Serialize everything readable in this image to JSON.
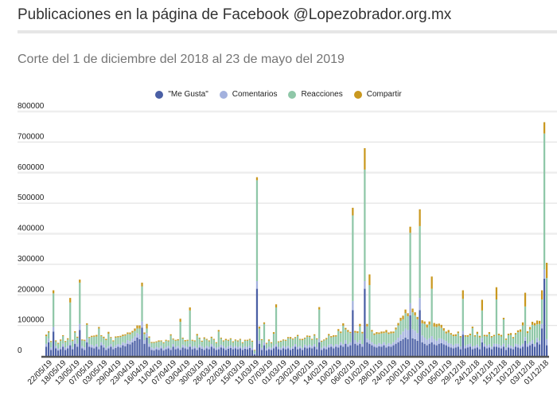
{
  "chart_data": {
    "type": "bar",
    "stacked": true,
    "title": "Publicaciones en la página de Facebook @Lopezobrador.org.mx",
    "subtitle": "Corte del 1 de diciembre del 2018 al 23 de mayo del 2019",
    "xlabel": "",
    "ylabel": "",
    "ylim": [
      0,
      800000
    ],
    "yticks": [
      "0",
      "100000",
      "200000",
      "300000",
      "400000",
      "500000",
      "600000",
      "700000",
      "800000"
    ],
    "xtick_labels": [
      "22/05/19",
      "18/05/19",
      "13/05/19",
      "07/05/19",
      "03/05/19",
      "29/04/19",
      "23/04/19",
      "16/04/19",
      "11/04/19",
      "07/04/19",
      "03/04/19",
      "30/03/19",
      "26/03/19",
      "22/03/19",
      "15/03/19",
      "11/03/19",
      "07/03/19",
      "01/03/19",
      "23/02/19",
      "19/02/19",
      "14/02/19",
      "10/02/19",
      "06/02/19",
      "01/02/19",
      "28/01/19",
      "24/01/19",
      "20/01/19",
      "15/01/19",
      "10/01/19",
      "05/01/19",
      "29/12/18",
      "24/12/18",
      "19/12/18",
      "15/12/18",
      "10/12/18",
      "03/12/18",
      "01/12/18"
    ],
    "legend_position": "top-center",
    "grid": true,
    "series_unit_multiplier": 1000,
    "series": [
      {
        "name": "\"Me Gusta\"",
        "color": "#4a5fa5",
        "values": [
          30,
          45,
          20,
          80,
          25,
          18,
          22,
          30,
          20,
          25,
          35,
          22,
          40,
          30,
          85,
          25,
          20,
          45,
          30,
          28,
          25,
          30,
          22,
          35,
          28,
          20,
          25,
          30,
          22,
          26,
          30,
          28,
          35,
          32,
          40,
          38,
          45,
          50,
          60,
          55,
          93,
          40,
          60,
          30,
          20,
          18,
          22,
          20,
          25,
          18,
          22,
          25,
          20,
          30,
          22,
          25,
          20,
          28,
          25,
          22,
          30,
          22,
          25,
          20,
          28,
          24,
          20,
          25,
          22,
          30,
          25,
          20,
          22,
          28,
          25,
          20,
          24,
          26,
          22,
          25,
          22,
          25,
          20,
          24,
          22,
          26,
          20,
          5,
          220,
          40,
          20,
          35,
          18,
          22,
          20,
          25,
          30,
          22,
          20,
          25,
          22,
          25,
          20,
          24,
          30,
          22,
          25,
          20,
          28,
          25,
          28,
          25,
          30,
          22,
          45,
          20,
          25,
          22,
          28,
          30,
          25,
          30,
          28,
          35,
          30,
          40,
          30,
          35,
          150,
          40,
          35,
          40,
          30,
          220,
          45,
          40,
          35,
          30,
          28,
          32,
          30,
          35,
          28,
          32,
          30,
          35,
          40,
          45,
          50,
          55,
          60,
          55,
          133,
          58,
          55,
          50,
          150,
          45,
          40,
          35,
          40,
          45,
          38,
          35,
          40,
          42,
          38,
          35,
          30,
          28,
          25,
          28,
          30,
          22,
          70,
          25,
          28,
          30,
          22,
          25,
          28,
          22,
          45,
          30,
          25,
          28,
          22,
          30,
          30,
          28,
          25,
          30,
          20,
          28,
          25,
          22,
          30,
          28,
          25,
          30,
          50,
          30,
          35,
          40,
          30,
          45,
          38,
          90,
          253,
          35
        ]
      },
      {
        "name": "Comentarios",
        "color": "#a3b1de",
        "values": [
          10,
          12,
          8,
          15,
          8,
          7,
          8,
          10,
          8,
          9,
          10,
          8,
          12,
          10,
          20,
          8,
          8,
          12,
          9,
          9,
          8,
          9,
          8,
          10,
          9,
          7,
          8,
          9,
          8,
          9,
          9,
          9,
          10,
          10,
          12,
          11,
          12,
          14,
          15,
          15,
          20,
          12,
          15,
          10,
          8,
          7,
          8,
          7,
          8,
          7,
          8,
          8,
          7,
          9,
          8,
          8,
          7,
          9,
          8,
          8,
          9,
          8,
          8,
          7,
          9,
          8,
          7,
          8,
          8,
          9,
          8,
          7,
          8,
          9,
          8,
          7,
          8,
          9,
          8,
          8,
          8,
          8,
          7,
          8,
          8,
          9,
          7,
          3,
          25,
          10,
          7,
          10,
          7,
          8,
          7,
          8,
          9,
          8,
          7,
          8,
          8,
          8,
          7,
          8,
          9,
          8,
          8,
          7,
          9,
          8,
          9,
          8,
          9,
          8,
          12,
          7,
          8,
          8,
          9,
          9,
          8,
          9,
          9,
          10,
          9,
          12,
          9,
          10,
          30,
          12,
          10,
          12,
          9,
          25,
          12,
          12,
          10,
          9,
          9,
          10,
          9,
          10,
          9,
          10,
          9,
          10,
          12,
          15,
          20,
          25,
          30,
          30,
          40,
          30,
          28,
          25,
          40,
          22,
          20,
          18,
          18,
          20,
          18,
          15,
          18,
          15,
          15,
          14,
          12,
          12,
          10,
          12,
          10,
          9,
          12,
          9,
          10,
          10,
          9,
          9,
          10,
          9,
          14,
          10,
          9,
          10,
          9,
          10,
          10,
          10,
          9,
          10,
          8,
          10,
          9,
          8,
          10,
          10,
          9,
          10,
          12,
          10,
          12,
          12,
          10,
          14,
          12,
          15,
          30,
          20
        ]
      },
      {
        "name": "Reacciones",
        "color": "#8fc7a8",
        "values": [
          25,
          20,
          18,
          110,
          15,
          15,
          20,
          25,
          18,
          20,
          130,
          20,
          25,
          20,
          135,
          18,
          22,
          45,
          20,
          25,
          30,
          25,
          60,
          20,
          22,
          25,
          40,
          20,
          18,
          25,
          22,
          25,
          20,
          25,
          20,
          22,
          20,
          18,
          15,
          20,
          115,
          20,
          15,
          20,
          15,
          18,
          15,
          20,
          15,
          17,
          20,
          15,
          40,
          15,
          20,
          18,
          85,
          20,
          15,
          20,
          110,
          20,
          15,
          40,
          20,
          15,
          30,
          20,
          18,
          20,
          20,
          15,
          50,
          20,
          15,
          25,
          18,
          20,
          15,
          18,
          18,
          20,
          15,
          18,
          20,
          18,
          20,
          10,
          330,
          40,
          25,
          60,
          15,
          20,
          15,
          40,
          120,
          15,
          20,
          18,
          20,
          25,
          30,
          22,
          20,
          35,
          20,
          25,
          20,
          30,
          25,
          20,
          28,
          25,
          95,
          20,
          18,
          25,
          30,
          22,
          30,
          25,
          45,
          30,
          60,
          35,
          40,
          30,
          280,
          25,
          30,
          45,
          35,
          365,
          40,
          180,
          35,
          30,
          35,
          30,
          35,
          30,
          40,
          30,
          35,
          30,
          35,
          40,
          45,
          40,
          50,
          45,
          230,
          55,
          50,
          45,
          235,
          40,
          45,
          40,
          45,
          155,
          40,
          45,
          40,
          35,
          30,
          25,
          35,
          30,
          30,
          25,
          35,
          30,
          105,
          30,
          25,
          28,
          60,
          30,
          35,
          30,
          90,
          25,
          30,
          35,
          30,
          25,
          145,
          30,
          30,
          80,
          25,
          30,
          35,
          28,
          30,
          40,
          45,
          60,
          100,
          35,
          40,
          50,
          60,
          45,
          55,
          80,
          445,
          200
        ]
      },
      {
        "name": "Compartir",
        "color": "#c9981f",
        "values": [
          5,
          4,
          3,
          10,
          3,
          3,
          4,
          3,
          3,
          4,
          15,
          3,
          4,
          3,
          10,
          3,
          3,
          5,
          3,
          4,
          4,
          5,
          5,
          3,
          4,
          4,
          6,
          3,
          3,
          4,
          4,
          4,
          5,
          4,
          5,
          6,
          5,
          8,
          10,
          10,
          12,
          5,
          15,
          4,
          3,
          3,
          3,
          4,
          3,
          3,
          3,
          3,
          4,
          3,
          3,
          4,
          10,
          3,
          4,
          3,
          10,
          3,
          3,
          5,
          3,
          3,
          4,
          3,
          3,
          4,
          3,
          3,
          5,
          3,
          3,
          4,
          3,
          3,
          3,
          3,
          3,
          3,
          3,
          3,
          3,
          3,
          3,
          2,
          10,
          6,
          3,
          5,
          3,
          4,
          3,
          5,
          10,
          3,
          3,
          3,
          3,
          4,
          5,
          3,
          3,
          4,
          3,
          4,
          3,
          4,
          4,
          3,
          4,
          3,
          8,
          3,
          3,
          4,
          5,
          4,
          5,
          4,
          6,
          5,
          8,
          5,
          6,
          4,
          25,
          5,
          6,
          8,
          5,
          70,
          8,
          35,
          5,
          5,
          6,
          5,
          6,
          5,
          8,
          5,
          6,
          5,
          6,
          8,
          10,
          12,
          12,
          10,
          20,
          12,
          10,
          8,
          55,
          10,
          8,
          10,
          10,
          40,
          12,
          10,
          8,
          10,
          8,
          6,
          8,
          5,
          5,
          6,
          5,
          4,
          28,
          4,
          5,
          5,
          5,
          4,
          6,
          5,
          35,
          4,
          5,
          5,
          4,
          4,
          40,
          5,
          5,
          5,
          4,
          5,
          6,
          4,
          5,
          6,
          8,
          10,
          45,
          6,
          8,
          10,
          8,
          12,
          10,
          30,
          37,
          50
        ]
      }
    ]
  }
}
